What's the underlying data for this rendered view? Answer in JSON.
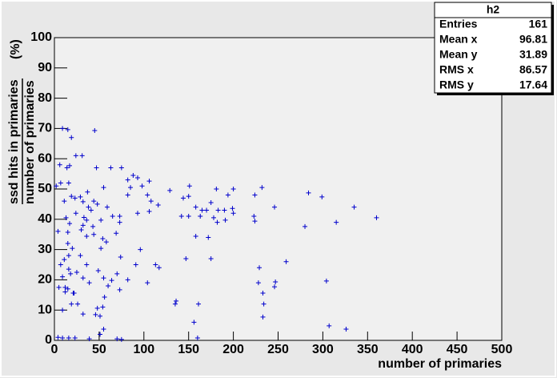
{
  "chart_data": {
    "type": "scatter",
    "x_label": "number of primaries",
    "y_label": {
      "numerator": "ssd hits in primaries",
      "denominator": "number of primaries",
      "unit": "(%)"
    },
    "xlim": [
      0,
      500
    ],
    "ylim": [
      0,
      100
    ],
    "xticks": [
      0,
      50,
      100,
      150,
      200,
      250,
      300,
      350,
      400,
      450,
      500
    ],
    "yticks": [
      0,
      10,
      20,
      30,
      40,
      50,
      60,
      70,
      80,
      90,
      100
    ],
    "grid": false,
    "series": [
      {
        "color": "#0000cc",
        "x": [
          9,
          15,
          45,
          19,
          24,
          31,
          6,
          17,
          14,
          47,
          63,
          75,
          88,
          93,
          82,
          7,
          16,
          2,
          106,
          98,
          55,
          85,
          151,
          129,
          181,
          200,
          232,
          37,
          284,
          299,
          150,
          144,
          194,
          224,
          29,
          19,
          23,
          11,
          44,
          82,
          104,
          108,
          116,
          32,
          48,
          38,
          59,
          24,
          41,
          65,
          93,
          106,
          142,
          150,
          163,
          158,
          165,
          170,
          175,
          183,
          190,
          199,
          200,
          178,
          182,
          191,
          223,
          224,
          246,
          335,
          360,
          315,
          280,
          33,
          36,
          52,
          73,
          73,
          13,
          17,
          32,
          4,
          15,
          30,
          36,
          44,
          69,
          43,
          54,
          58,
          158,
          172,
          20,
          96,
          52,
          36,
          15,
          147,
          175,
          29,
          259,
          74,
          113,
          117,
          91,
          16,
          229,
          11,
          7,
          16,
          25,
          70,
          18,
          9,
          32,
          55,
          49,
          64,
          82,
          104,
          228,
          247,
          246,
          304,
          39,
          60,
          5,
          15,
          21,
          22,
          73,
          233,
          56,
          136,
          135,
          161,
          19,
          26,
          234,
          54,
          48,
          9,
          32,
          46,
          51,
          233,
          156,
          307,
          326,
          55,
          51,
          4,
          9,
          16,
          23,
          39,
          70,
          75,
          160,
          12,
          12
        ],
        "y": [
          70,
          69.6,
          69.3,
          67,
          61,
          61,
          58,
          57.7,
          57,
          57,
          57,
          57,
          54.5,
          53.7,
          53,
          52,
          52,
          51,
          52.6,
          51,
          50.5,
          50.5,
          51,
          49.5,
          50,
          50,
          50.5,
          49,
          48.7,
          47.4,
          47.6,
          47,
          48,
          48,
          47.4,
          47.6,
          47,
          46,
          46,
          48,
          48,
          46,
          44.7,
          45.8,
          45,
          44,
          44,
          42,
          43,
          41,
          42,
          42.6,
          41,
          41,
          41,
          44,
          43,
          43,
          45.5,
          43,
          43,
          43.6,
          42,
          40.5,
          39,
          39.7,
          41,
          39.4,
          44,
          44,
          40.5,
          39,
          37.6,
          40.6,
          39.7,
          39.7,
          39,
          41,
          40.5,
          38.6,
          38,
          36,
          35.7,
          36.5,
          34.4,
          35,
          35.4,
          37.6,
          33.6,
          32.5,
          34.4,
          34,
          30.4,
          30,
          30.4,
          25,
          32,
          27,
          27,
          28,
          26,
          27.5,
          25,
          24,
          25,
          28,
          24,
          26.7,
          25,
          23.5,
          22.5,
          22,
          22,
          21,
          20.6,
          20.6,
          23,
          19.8,
          20,
          19,
          19,
          19.3,
          17.7,
          19.6,
          19,
          18,
          17.5,
          17,
          15.6,
          15.6,
          16.7,
          15.6,
          14.3,
          13,
          12,
          12,
          12,
          12,
          12,
          11,
          10.6,
          10,
          8.7,
          8.5,
          8,
          7.7,
          6,
          4.8,
          3.7,
          3.7,
          2,
          1,
          0.8,
          0.8,
          0.8,
          0.5,
          0.5,
          0.3,
          0.8,
          17.5,
          16
        ]
      }
    ],
    "stats": {
      "title": "h2",
      "rows": [
        {
          "label": "Entries",
          "value": 161
        },
        {
          "label": "Mean x",
          "value": 96.81
        },
        {
          "label": "Mean y",
          "value": 31.89
        },
        {
          "label": "RMS x",
          "value": 86.57
        },
        {
          "label": "RMS y",
          "value": 17.64
        }
      ]
    }
  }
}
